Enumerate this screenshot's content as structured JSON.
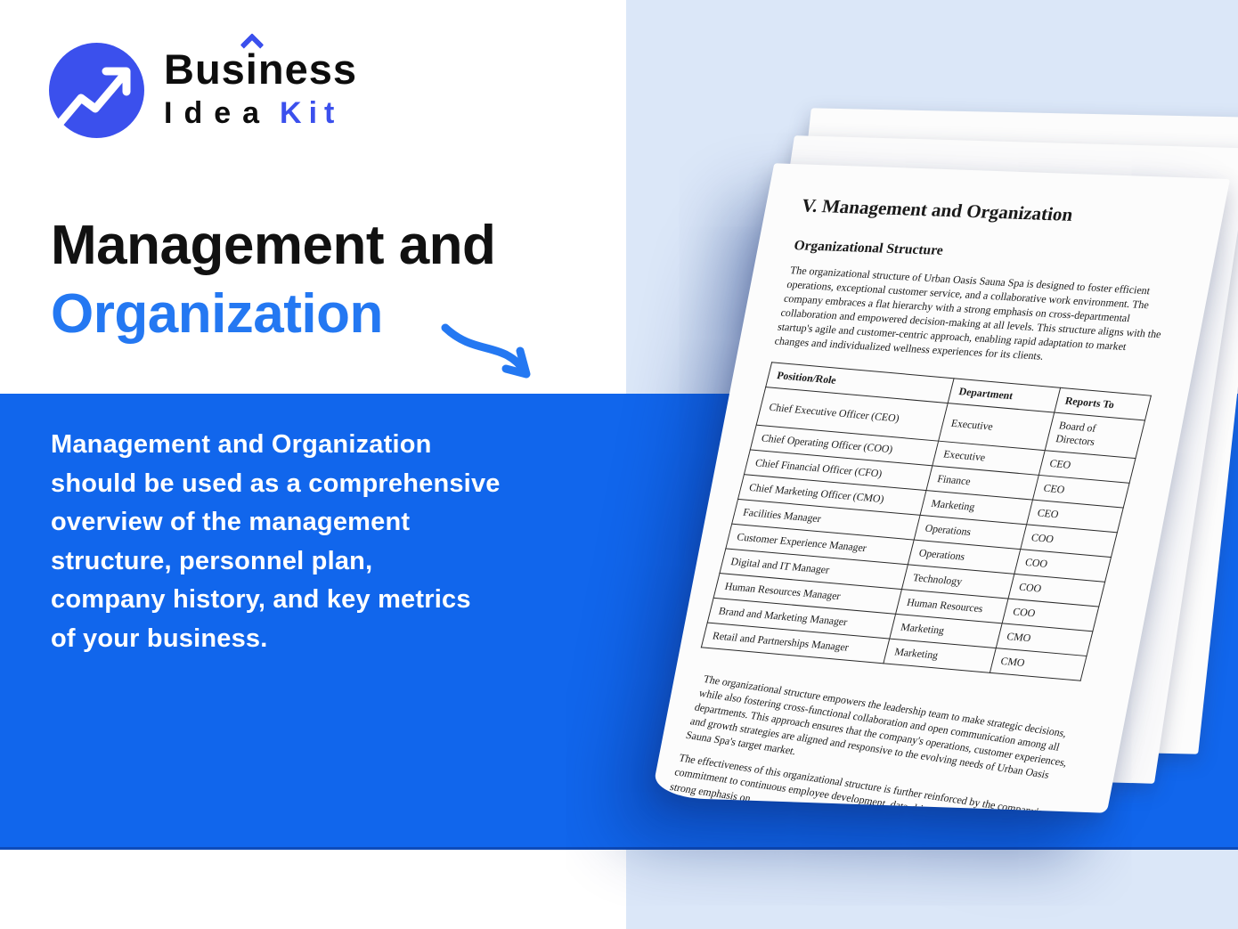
{
  "brand": {
    "word_top_pre": "Bus",
    "word_top_i": "i",
    "word_top_post": "ness",
    "word_bottom_1": "Idea",
    "word_bottom_2": "Kit"
  },
  "hero": {
    "title_line1": "Management and",
    "title_line2": "Organization",
    "description": "Management and Organization\nshould be used as a comprehensive\noverview of the management\nstructure, personnel plan,\ncompany history, and key metrics\nof your business."
  },
  "document": {
    "title": "V. Management and Organization",
    "section_heading": "Organizational Structure",
    "intro": "The organizational structure of Urban Oasis Sauna Spa is designed to foster efficient operations, exceptional customer service, and a collaborative work environment. The company embraces a flat hierarchy with a strong emphasis on cross-departmental collaboration and empowered decision-making at all levels. This structure aligns with the startup's agile and customer-centric approach, enabling rapid adaptation to market changes and individualized wellness experiences for its clients.",
    "table": {
      "headers": [
        "Position/Role",
        "Department",
        "Reports To"
      ],
      "rows": [
        [
          "Chief Executive Officer (CEO)",
          "Executive",
          "Board of Directors"
        ],
        [
          "Chief Operating Officer (COO)",
          "Executive",
          "CEO"
        ],
        [
          "Chief Financial Officer (CFO)",
          "Finance",
          "CEO"
        ],
        [
          "Chief Marketing Officer (CMO)",
          "Marketing",
          "CEO"
        ],
        [
          "Facilities Manager",
          "Operations",
          "COO"
        ],
        [
          "Customer Experience Manager",
          "Operations",
          "COO"
        ],
        [
          "Digital and IT Manager",
          "Technology",
          "COO"
        ],
        [
          "Human Resources Manager",
          "Human Resources",
          "COO"
        ],
        [
          "Brand and Marketing Manager",
          "Marketing",
          "CMO"
        ],
        [
          "Retail and Partnerships Manager",
          "Marketing",
          "CMO"
        ]
      ]
    },
    "closing_1": "The organizational structure empowers the leadership team to make strategic decisions, while also fostering cross-functional collaboration and open communication among all departments. This approach ensures that the company's operations, customer experiences, and growth strategies are aligned and responsive to the evolving needs of Urban Oasis Sauna Spa's target market.",
    "closing_2": "The effectiveness of this organizational structure is further reinforced by the company's commitment to continuous employee development, data-driven decision-making, and a strong emphasis on"
  },
  "colors": {
    "brand_blue": "#3b50ed",
    "accent_blue": "#2478f2",
    "band_blue": "#1166ec",
    "panel_blue": "#dbe7f8",
    "paper": "#fcfcfc",
    "ink": "#111111"
  }
}
